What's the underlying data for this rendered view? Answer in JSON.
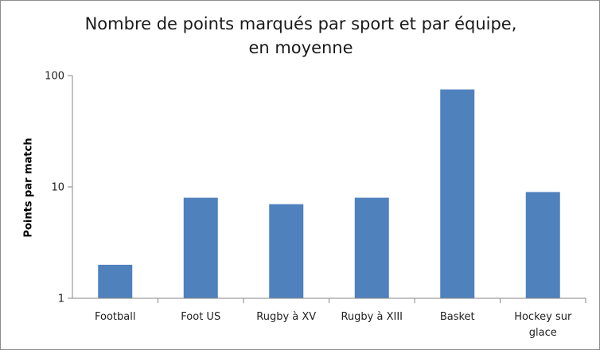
{
  "chart_data": {
    "type": "bar",
    "title": "Nombre de points marqués par sport et par équipe, en moyenne",
    "xlabel": "",
    "ylabel": "Points par match",
    "yscale": "log",
    "ylim": [
      1,
      100
    ],
    "yticks": [
      1,
      10,
      100
    ],
    "ytick_labels": [
      "1",
      "10",
      "100"
    ],
    "grid": false,
    "legend": "none",
    "bar_color": "#4f81bd",
    "categories": [
      "Football",
      "Foot US",
      "Rugby à XV",
      "Rugby à XIII",
      "Basket",
      "Hockey sur glace"
    ],
    "values": [
      2,
      8,
      7,
      8,
      75,
      9
    ]
  }
}
